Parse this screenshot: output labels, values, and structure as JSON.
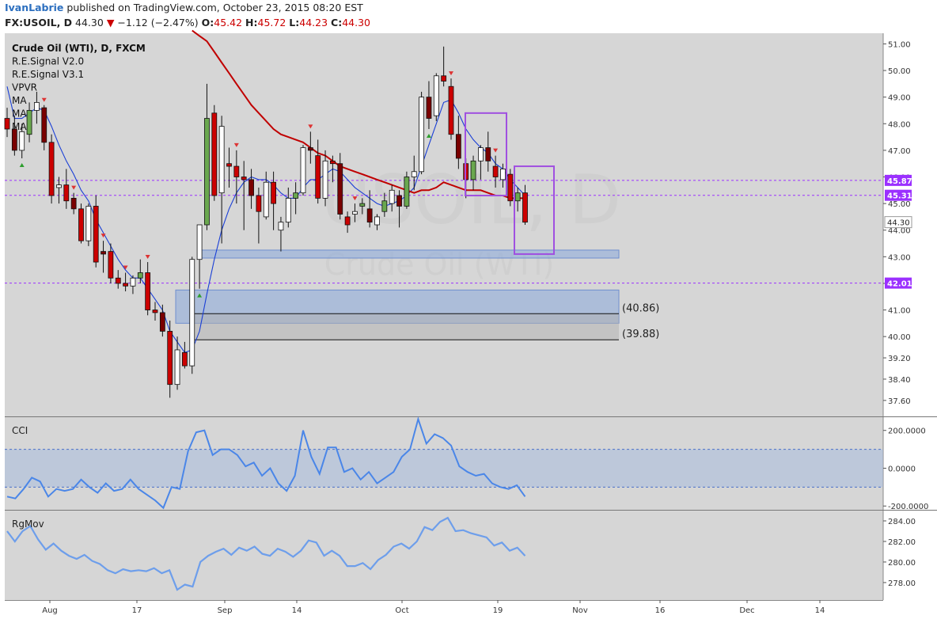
{
  "header": {
    "author": "IvanLabrie",
    "published_text": "published on TradingView.com, October 23, 2015 08:20 EST",
    "symbol_line": {
      "symbol": "FX:USOIL, D",
      "last": "44.30",
      "change_arrow": "▼",
      "change": "−1.12 (−2.47%)",
      "open_label": "O:",
      "open": "45.42",
      "high_label": "H:",
      "high": "45.72",
      "low_label": "L:",
      "low": "44.23",
      "close_label": "C:",
      "close": "44.30"
    }
  },
  "legend": [
    "Crude Oil (WTI), D, FXCM",
    "R.E.Signal V2.0",
    "R.E.Signal V3.1",
    "VPVR",
    "MA",
    "MA",
    "MA"
  ],
  "watermark": {
    "symbol": "USOIL, D",
    "name": "Crude Oil (WTI)"
  },
  "colors": {
    "background": "#d6d6d6",
    "bull_candle": "#6aa84f",
    "bull_candle_hollow": "#ffffff",
    "bear_candle": "#cc0000",
    "bear_candle_dark": "#7a0000",
    "ma_fast": "#1a3fd6",
    "ma_slow": "#c00000",
    "signal_box": "#a050e0",
    "volume_profile": "#8aa9dd",
    "cci_line": "#4a86e8",
    "rgmov_line": "#6d9eeb",
    "price_label": "#9b30ff"
  },
  "chart_data": [
    {
      "type": "candlestick",
      "panel": "price",
      "y_ticks": [
        "51.00",
        "50.00",
        "49.00",
        "48.00",
        "47.00",
        "46.00",
        "45.00",
        "44.00",
        "43.00",
        "42.00",
        "41.00",
        "40.00",
        "39.20",
        "38.40",
        "37.60"
      ],
      "ylim": [
        37.0,
        51.4
      ],
      "x_ticks": [
        "Aug",
        "17",
        "Sep",
        "14",
        "Oct",
        "19",
        "Nov",
        "16",
        "Dec",
        "14"
      ],
      "price_labels": [
        {
          "value": 45.87,
          "text": "45.87"
        },
        {
          "value": 45.31,
          "text": "45.31"
        },
        {
          "value": 44.3,
          "text": "44.30"
        },
        {
          "value": 42.01,
          "text": "42.01"
        }
      ],
      "annotations": [
        {
          "value": 40.86,
          "text": "(40.86)"
        },
        {
          "value": 39.88,
          "text": "(39.88)"
        }
      ],
      "volume_profile_zones": [
        {
          "from": 42.95,
          "to": 43.25
        },
        {
          "from": 40.5,
          "to": 41.75
        }
      ],
      "candles": [
        [
          48.2,
          48.6,
          47.5,
          47.8
        ],
        [
          47.8,
          48.3,
          46.8,
          47.0
        ],
        [
          47.0,
          48.0,
          46.7,
          47.7
        ],
        [
          47.6,
          48.8,
          47.3,
          48.5
        ],
        [
          48.5,
          49.2,
          48.0,
          48.8
        ],
        [
          48.6,
          48.7,
          47.0,
          47.3
        ],
        [
          47.3,
          47.6,
          45.0,
          45.3
        ],
        [
          45.6,
          46.0,
          45.0,
          45.7
        ],
        [
          45.7,
          46.3,
          44.8,
          45.1
        ],
        [
          45.2,
          45.4,
          44.6,
          44.8
        ],
        [
          44.8,
          45.0,
          43.5,
          43.6
        ],
        [
          43.6,
          45.0,
          43.4,
          44.9
        ],
        [
          44.9,
          45.3,
          42.6,
          42.8
        ],
        [
          43.2,
          43.6,
          42.4,
          43.1
        ],
        [
          43.2,
          43.5,
          42.0,
          42.2
        ],
        [
          42.2,
          42.5,
          41.8,
          42.0
        ],
        [
          42.0,
          42.4,
          41.7,
          41.9
        ],
        [
          41.9,
          42.3,
          41.6,
          42.2
        ],
        [
          42.2,
          42.9,
          42.0,
          42.4
        ],
        [
          42.4,
          42.8,
          40.8,
          41.0
        ],
        [
          41.0,
          41.3,
          40.6,
          40.9
        ],
        [
          40.9,
          41.2,
          40.0,
          40.2
        ],
        [
          40.2,
          40.6,
          37.7,
          38.2
        ],
        [
          38.2,
          40.0,
          38.0,
          39.5
        ],
        [
          39.4,
          39.8,
          38.8,
          38.9
        ],
        [
          38.9,
          43.0,
          38.6,
          42.9
        ],
        [
          42.9,
          44.2,
          41.8,
          44.2
        ],
        [
          44.2,
          49.5,
          44.0,
          48.2
        ],
        [
          48.4,
          48.7,
          45.1,
          45.3
        ],
        [
          45.4,
          48.3,
          43.5,
          47.9
        ],
        [
          46.5,
          47.1,
          45.6,
          46.4
        ],
        [
          46.4,
          47.0,
          45.0,
          46.0
        ],
        [
          46.0,
          46.6,
          44.0,
          45.9
        ],
        [
          45.9,
          46.3,
          44.8,
          45.3
        ],
        [
          45.3,
          45.6,
          43.5,
          44.7
        ],
        [
          44.5,
          46.2,
          44.4,
          45.8
        ],
        [
          45.8,
          46.2,
          44.0,
          45.0
        ],
        [
          44.0,
          44.5,
          43.2,
          44.3
        ],
        [
          44.3,
          45.6,
          44.1,
          45.2
        ],
        [
          45.2,
          45.8,
          44.6,
          45.4
        ],
        [
          45.4,
          47.2,
          45.3,
          47.1
        ],
        [
          47.1,
          47.7,
          46.5,
          47.0
        ],
        [
          46.8,
          47.4,
          45.0,
          45.2
        ],
        [
          45.2,
          47.0,
          44.9,
          46.6
        ],
        [
          46.6,
          46.8,
          45.8,
          46.5
        ],
        [
          46.5,
          46.9,
          44.4,
          44.6
        ],
        [
          44.5,
          44.7,
          43.9,
          44.2
        ],
        [
          44.6,
          45.0,
          44.3,
          44.7
        ],
        [
          44.9,
          45.2,
          44.6,
          45.0
        ],
        [
          44.8,
          45.5,
          44.1,
          44.3
        ],
        [
          44.2,
          44.6,
          44.0,
          44.5
        ],
        [
          44.7,
          45.4,
          44.5,
          45.1
        ],
        [
          45.0,
          45.7,
          44.7,
          45.5
        ],
        [
          45.3,
          45.5,
          44.1,
          44.9
        ],
        [
          44.9,
          46.2,
          44.8,
          46.0
        ],
        [
          46.0,
          46.8,
          45.5,
          46.2
        ],
        [
          46.2,
          49.2,
          46.1,
          49.0
        ],
        [
          49.0,
          49.6,
          47.8,
          48.2
        ],
        [
          48.3,
          49.9,
          48.1,
          49.8
        ],
        [
          49.8,
          50.9,
          49.4,
          49.6
        ],
        [
          49.4,
          49.7,
          47.4,
          47.6
        ],
        [
          47.6,
          48.3,
          46.3,
          46.7
        ],
        [
          46.5,
          46.7,
          45.2,
          45.9
        ],
        [
          45.9,
          46.8,
          45.5,
          46.6
        ],
        [
          46.6,
          47.2,
          45.9,
          47.1
        ],
        [
          47.1,
          47.7,
          46.2,
          46.6
        ],
        [
          46.4,
          46.8,
          45.6,
          46.0
        ],
        [
          45.9,
          46.5,
          45.6,
          46.3
        ],
        [
          46.1,
          46.3,
          44.9,
          45.1
        ],
        [
          45.1,
          45.6,
          44.7,
          45.4
        ],
        [
          45.4,
          45.7,
          44.2,
          44.3
        ]
      ],
      "series": [
        {
          "name": "MA",
          "color": "#1a3fd6",
          "values": [
            49.4,
            48.2,
            48.2,
            48.4,
            48.6,
            48.5,
            47.9,
            47.2,
            46.6,
            46.1,
            45.5,
            45.1,
            44.4,
            43.9,
            43.4,
            42.9,
            42.5,
            42.2,
            42.2,
            41.8,
            41.4,
            41.0,
            40.2,
            39.8,
            39.4,
            39.5,
            40.2,
            41.6,
            42.9,
            44.0,
            44.8,
            45.4,
            45.8,
            46.0,
            45.9,
            45.9,
            45.7,
            45.4,
            45.2,
            45.2,
            45.6,
            45.9,
            45.9,
            46.1,
            46.3,
            46.2,
            45.9,
            45.6,
            45.4,
            45.2,
            45.0,
            44.9,
            45.0,
            45.1,
            45.3,
            45.6,
            46.4,
            47.2,
            48.0,
            48.8,
            48.9,
            48.4,
            47.8,
            47.4,
            47.1,
            46.9,
            46.5,
            46.3,
            45.9,
            45.6,
            45.3
          ]
        },
        {
          "name": "MA",
          "color": "#c00000",
          "values": [
            null,
            null,
            null,
            null,
            null,
            null,
            null,
            null,
            null,
            null,
            null,
            null,
            null,
            null,
            null,
            null,
            null,
            null,
            null,
            null,
            null,
            null,
            null,
            null,
            null,
            51.5,
            51.3,
            51.1,
            50.7,
            50.3,
            49.9,
            49.5,
            49.1,
            48.7,
            48.4,
            48.1,
            47.8,
            47.6,
            47.5,
            47.4,
            47.3,
            47.1,
            46.9,
            46.8,
            46.6,
            46.4,
            46.3,
            46.2,
            46.1,
            46.0,
            45.9,
            45.8,
            45.7,
            45.6,
            45.5,
            45.4,
            45.5,
            45.5,
            45.6,
            45.8,
            45.7,
            45.6,
            45.5,
            45.5,
            45.5,
            45.4,
            45.3,
            45.3,
            45.2,
            45.2,
            45.2
          ]
        }
      ]
    },
    {
      "type": "line",
      "panel": "CCI",
      "title": "CCI",
      "y_ticks": [
        "200.0000",
        "0.0000",
        "-200.0000"
      ],
      "ylim": [
        -220,
        270
      ],
      "band": [
        -100,
        100
      ],
      "series": [
        {
          "name": "CCI",
          "values": [
            -150,
            -160,
            -110,
            -50,
            -70,
            -150,
            -110,
            -120,
            -110,
            -60,
            -100,
            -130,
            -80,
            -120,
            -110,
            -60,
            -110,
            -140,
            -170,
            -210,
            -100,
            -110,
            90,
            190,
            200,
            70,
            100,
            100,
            70,
            10,
            30,
            -40,
            0,
            -80,
            -120,
            -40,
            200,
            60,
            -30,
            110,
            110,
            -20,
            0,
            -60,
            -20,
            -80,
            -50,
            -20,
            60,
            100,
            260,
            130,
            180,
            160,
            120,
            10,
            -20,
            -40,
            -30,
            -80,
            -100,
            -110,
            -90,
            -150
          ]
        }
      ]
    },
    {
      "type": "line",
      "panel": "RgMov",
      "title": "RgMov",
      "y_ticks": [
        "284.00",
        "282.00",
        "280.00",
        "278.00"
      ],
      "ylim": [
        276.3,
        285.0
      ],
      "series": [
        {
          "name": "RgMov",
          "values": [
            283.0,
            282.0,
            283.0,
            283.5,
            282.2,
            281.2,
            281.8,
            281.1,
            280.6,
            280.3,
            280.7,
            280.1,
            279.8,
            279.2,
            278.9,
            279.3,
            279.1,
            279.2,
            279.1,
            279.4,
            278.9,
            279.2,
            277.3,
            277.8,
            277.6,
            280.0,
            280.6,
            281.0,
            281.3,
            280.7,
            281.4,
            281.1,
            281.5,
            280.8,
            280.6,
            281.3,
            281.0,
            280.5,
            281.1,
            282.1,
            281.9,
            280.6,
            281.1,
            280.6,
            279.6,
            279.6,
            279.9,
            279.3,
            280.2,
            280.7,
            281.5,
            281.8,
            281.3,
            282.0,
            283.4,
            283.1,
            283.9,
            284.3,
            283.0,
            283.1,
            282.8,
            282.6,
            282.4,
            281.6,
            281.9,
            281.1,
            281.4,
            280.6
          ]
        }
      ]
    }
  ]
}
